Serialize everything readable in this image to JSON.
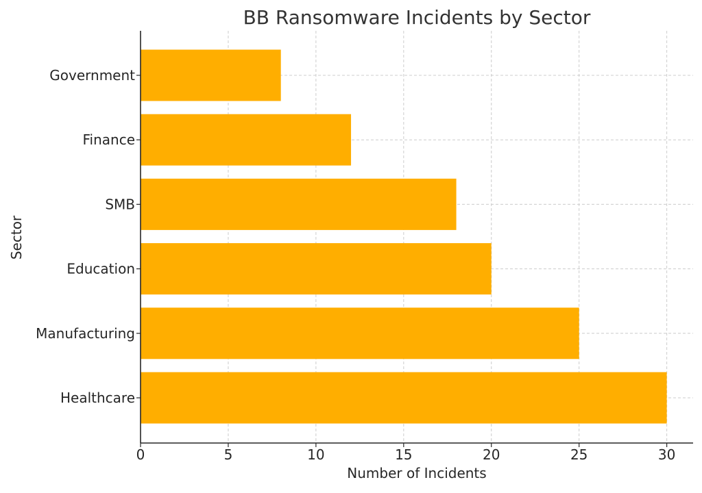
{
  "chart_data": {
    "type": "bar",
    "orientation": "horizontal",
    "title": "BB Ransomware Incidents by Sector",
    "xlabel": "Number of Incidents",
    "ylabel": "Sector",
    "categories": [
      "Healthcare",
      "Manufacturing",
      "Education",
      "SMB",
      "Finance",
      "Government"
    ],
    "values": [
      30,
      25,
      20,
      18,
      12,
      8
    ],
    "xlim": [
      0,
      31.5
    ],
    "xticks": [
      0,
      5,
      10,
      15,
      20,
      25,
      30
    ],
    "grid": true,
    "bar_color": "#ffae00"
  }
}
